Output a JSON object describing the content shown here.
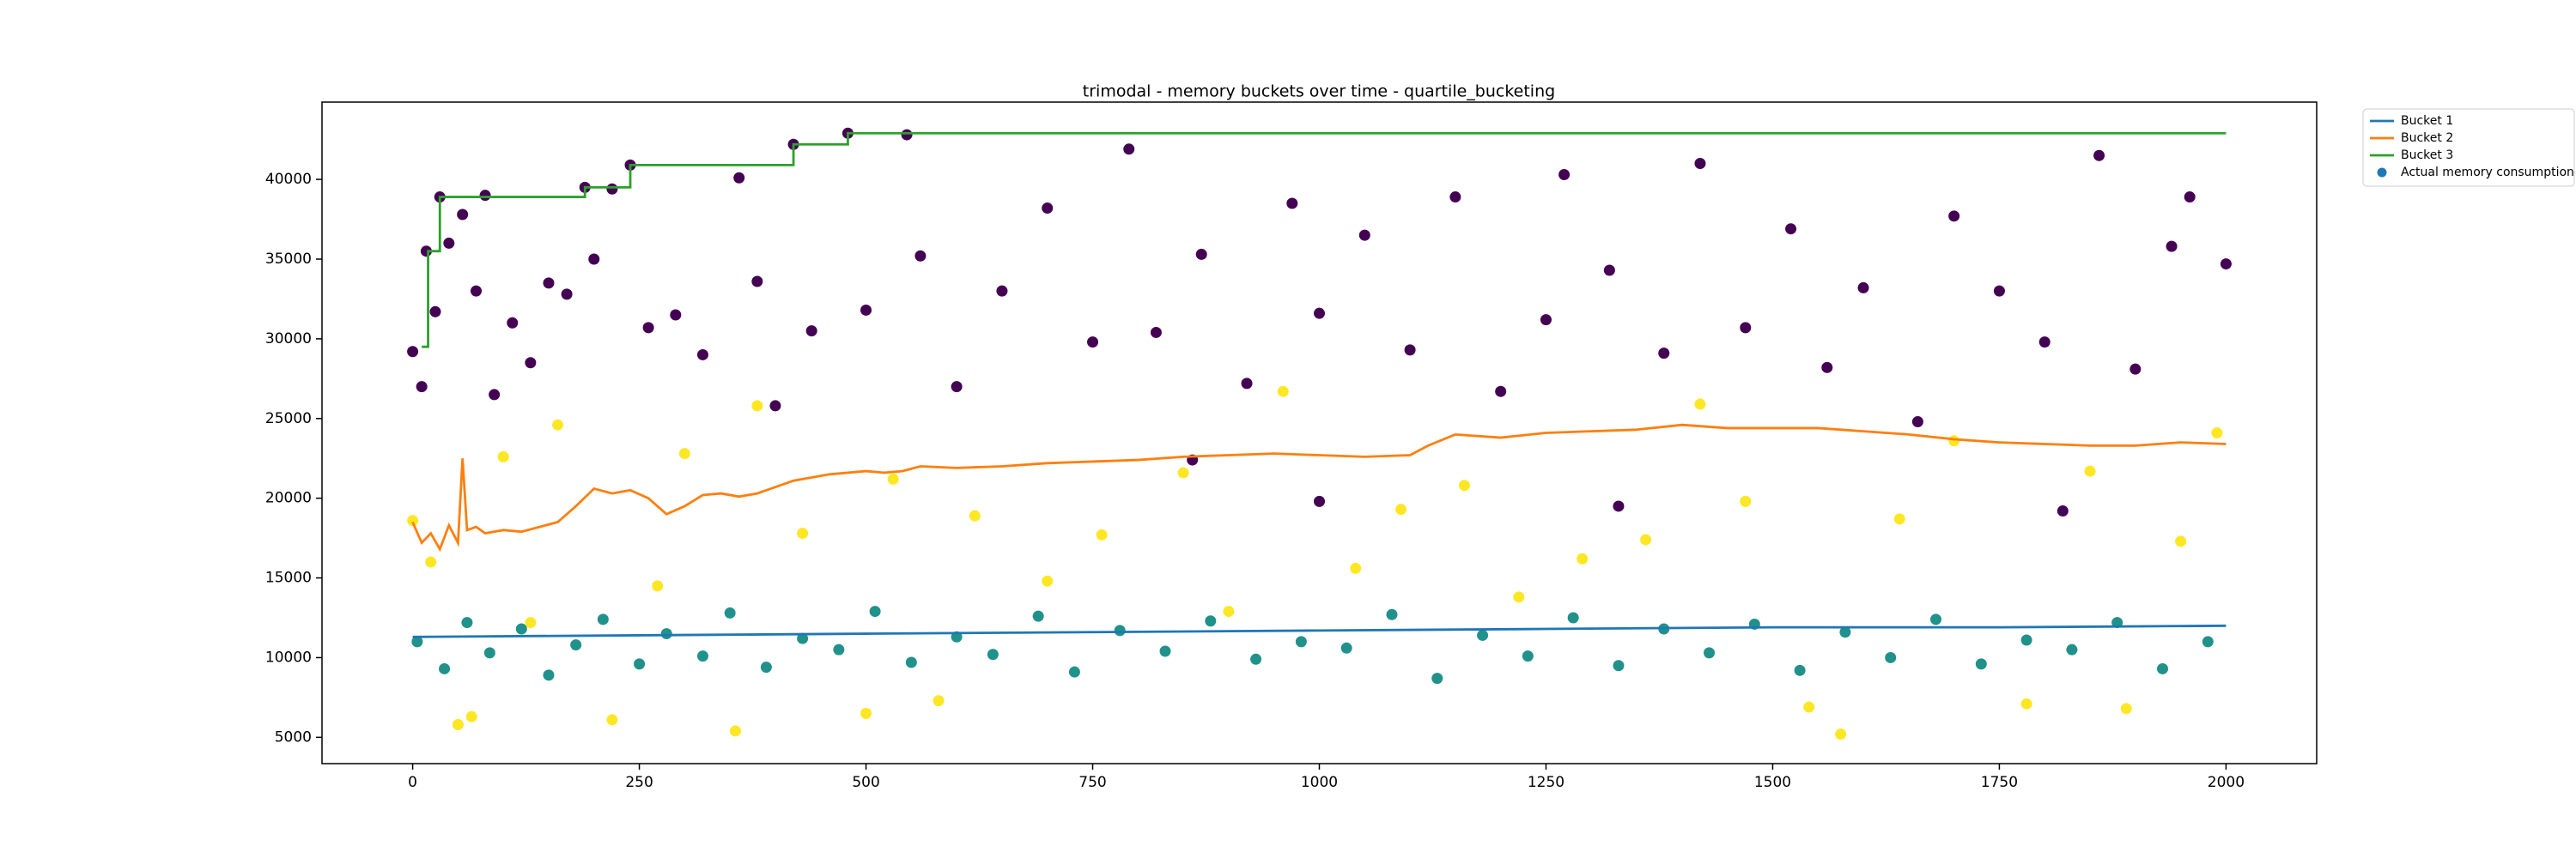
{
  "chart_data": {
    "type": "line",
    "title": "trimodal - memory buckets over time - quartile_bucketing",
    "xlim": [
      -100,
      2100
    ],
    "ylim": [
      3350,
      44850
    ],
    "xticks": [
      0,
      250,
      500,
      750,
      1000,
      1250,
      1500,
      1750,
      2000
    ],
    "yticks": [
      5000,
      10000,
      15000,
      20000,
      25000,
      30000,
      35000,
      40000
    ],
    "grid": false,
    "legend": "outside upper right",
    "series": [
      {
        "name": "Bucket 1",
        "type": "line",
        "color": "#1f77b4",
        "x": [
          0,
          250,
          500,
          750,
          1000,
          1250,
          1500,
          1750,
          2000
        ],
        "values": [
          11300,
          11400,
          11500,
          11600,
          11700,
          11800,
          11900,
          11900,
          12000
        ]
      },
      {
        "name": "Bucket 2",
        "type": "line",
        "color": "#ff7f0e",
        "x": [
          0,
          10,
          20,
          30,
          40,
          50,
          55,
          60,
          70,
          80,
          100,
          120,
          140,
          160,
          180,
          200,
          220,
          240,
          260,
          280,
          300,
          320,
          340,
          360,
          380,
          400,
          420,
          440,
          460,
          480,
          500,
          520,
          540,
          560,
          600,
          650,
          700,
          750,
          800,
          850,
          900,
          950,
          1000,
          1050,
          1100,
          1120,
          1150,
          1200,
          1250,
          1300,
          1350,
          1400,
          1450,
          1500,
          1550,
          1600,
          1650,
          1700,
          1750,
          1800,
          1850,
          1900,
          1950,
          2000
        ],
        "values": [
          18500,
          17200,
          17800,
          16800,
          18300,
          17200,
          22500,
          18000,
          18200,
          17800,
          18000,
          17900,
          18200,
          18500,
          19500,
          20600,
          20300,
          20500,
          20000,
          19000,
          19500,
          20200,
          20300,
          20100,
          20300,
          20700,
          21100,
          21300,
          21500,
          21600,
          21700,
          21600,
          21700,
          22000,
          21900,
          22000,
          22200,
          22300,
          22400,
          22600,
          22700,
          22800,
          22700,
          22600,
          22700,
          23300,
          24000,
          23800,
          24100,
          24200,
          24300,
          24600,
          24400,
          24400,
          24400,
          24200,
          24000,
          23700,
          23500,
          23400,
          23300,
          23300,
          23500,
          23400
        ]
      },
      {
        "name": "Bucket 3",
        "type": "line",
        "drawstyle": "steps-post",
        "color": "#2ca02c",
        "x": [
          10,
          17,
          30,
          190,
          240,
          420,
          480,
          2000
        ],
        "values": [
          29500,
          35500,
          38900,
          39500,
          40900,
          42200,
          42900,
          42900
        ]
      },
      {
        "name": "Actual memory consumption",
        "type": "scatter",
        "color": "#1f77b4",
        "groups": [
          {
            "color": "#440154",
            "x": [
              0,
              10,
              15,
              25,
              30,
              40,
              55,
              70,
              80,
              90,
              110,
              130,
              150,
              170,
              190,
              200,
              220,
              240,
              260,
              290,
              320,
              360,
              380,
              400,
              420,
              440,
              480,
              500,
              545,
              560,
              600,
              650,
              700,
              750,
              790,
              820,
              870,
              920,
              970,
              1000,
              1050,
              1100,
              1150,
              1200,
              1250,
              1270,
              1320,
              1380,
              1420,
              1470,
              1520,
              1560,
              1600,
              1660,
              1700,
              1750,
              1800,
              1860,
              1900,
              1940,
              1960,
              2000,
              860,
              1000,
              1330,
              1820
            ],
            "values": [
              29200,
              27000,
              35500,
              31700,
              38900,
              36000,
              37800,
              33000,
              39000,
              26500,
              31000,
              28500,
              33500,
              32800,
              39500,
              35000,
              39400,
              40900,
              30700,
              31500,
              29000,
              40100,
              33600,
              25800,
              42200,
              30500,
              42900,
              31800,
              42800,
              35200,
              27000,
              33000,
              38200,
              29800,
              41900,
              30400,
              35300,
              27200,
              38500,
              31600,
              36500,
              29300,
              38900,
              26700,
              31200,
              40300,
              34300,
              29100,
              41000,
              30700,
              36900,
              28200,
              33200,
              24800,
              37700,
              33000,
              29800,
              41500,
              28100,
              35800,
              38900,
              34700,
              22400,
              19800,
              19500,
              19200
            ]
          },
          {
            "color": "#21918c",
            "x": [
              5,
              35,
              60,
              85,
              120,
              150,
              180,
              210,
              250,
              280,
              320,
              350,
              390,
              430,
              470,
              510,
              550,
              600,
              640,
              690,
              730,
              780,
              830,
              880,
              930,
              980,
              1030,
              1080,
              1130,
              1180,
              1230,
              1280,
              1330,
              1380,
              1430,
              1480,
              1530,
              1580,
              1630,
              1680,
              1730,
              1780,
              1830,
              1880,
              1930,
              1980
            ],
            "values": [
              11000,
              9300,
              12200,
              10300,
              11800,
              8900,
              10800,
              12400,
              9600,
              11500,
              10100,
              12800,
              9400,
              11200,
              10500,
              12900,
              9700,
              11300,
              10200,
              12600,
              9100,
              11700,
              10400,
              12300,
              9900,
              11000,
              10600,
              12700,
              8700,
              11400,
              10100,
              12500,
              9500,
              11800,
              10300,
              12100,
              9200,
              11600,
              10000,
              12400,
              9600,
              11100,
              10500,
              12200,
              9300,
              11000
            ]
          },
          {
            "color": "#fde725",
            "x": [
              0,
              20,
              50,
              65,
              100,
              130,
              160,
              220,
              270,
              300,
              356,
              380,
              430,
              500,
              530,
              580,
              620,
              700,
              760,
              850,
              900,
              960,
              1040,
              1090,
              1160,
              1220,
              1290,
              1360,
              1420,
              1470,
              1540,
              1575,
              1640,
              1700,
              1780,
              1850,
              1890,
              1950,
              1990
            ],
            "values": [
              18600,
              16000,
              5800,
              6300,
              22600,
              12200,
              24600,
              6100,
              14500,
              22800,
              5400,
              25800,
              17800,
              6500,
              21200,
              7300,
              18900,
              14800,
              17700,
              21600,
              12900,
              26700,
              15600,
              19300,
              20800,
              13800,
              16200,
              17400,
              25900,
              19800,
              6900,
              5200,
              18700,
              23600,
              7100,
              21700,
              6800,
              17300,
              24100
            ]
          }
        ]
      }
    ]
  }
}
